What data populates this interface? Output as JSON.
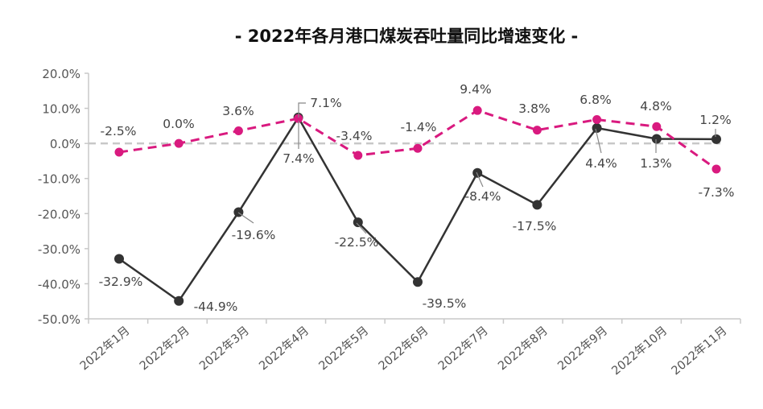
{
  "chart_data": {
    "type": "line",
    "title": "- 2022年各月港口煤炭吞吐量同比增速变化 -",
    "categories": [
      "2022年1月",
      "2022年2月",
      "2022年3月",
      "2022年4月",
      "2022年5月",
      "2022年6月",
      "2022年7月",
      "2022年8月",
      "2022年9月",
      "2022年10月",
      "2022年11月"
    ],
    "series": [
      {
        "color": "#d91a7f",
        "style": "dashed",
        "values": [
          -2.5,
          0.0,
          3.6,
          7.1,
          -3.4,
          -1.4,
          9.4,
          3.8,
          6.8,
          4.8,
          -7.3
        ],
        "labels": [
          "-2.5%",
          "0.0%",
          "3.6%",
          "7.1%",
          "-3.4%",
          "-1.4%",
          "9.4%",
          "3.8%",
          "6.8%",
          "4.8%",
          "-7.3%"
        ]
      },
      {
        "color": "#333333",
        "style": "solid",
        "values": [
          -32.9,
          -44.9,
          -19.6,
          7.4,
          -22.5,
          -39.5,
          -8.4,
          -17.5,
          4.4,
          1.3,
          1.2
        ],
        "labels": [
          "-32.9%",
          "-44.9%",
          "-19.6%",
          "7.4%",
          "-22.5%",
          "-39.5%",
          "-8.4%",
          "-17.5%",
          "4.4%",
          "1.3%",
          "1.2%"
        ]
      }
    ],
    "ylim": [
      -50,
      20
    ],
    "yticks": [
      "20.0%",
      "10.0%",
      "0.0%",
      "-10.0%",
      "-20.0%",
      "-30.0%",
      "-40.0%",
      "-50.0%"
    ],
    "ytick_values": [
      20,
      10,
      0,
      -10,
      -20,
      -30,
      -40,
      -50
    ],
    "zero_line_color": "#c8c8c8",
    "grid": false,
    "legend": "none"
  }
}
